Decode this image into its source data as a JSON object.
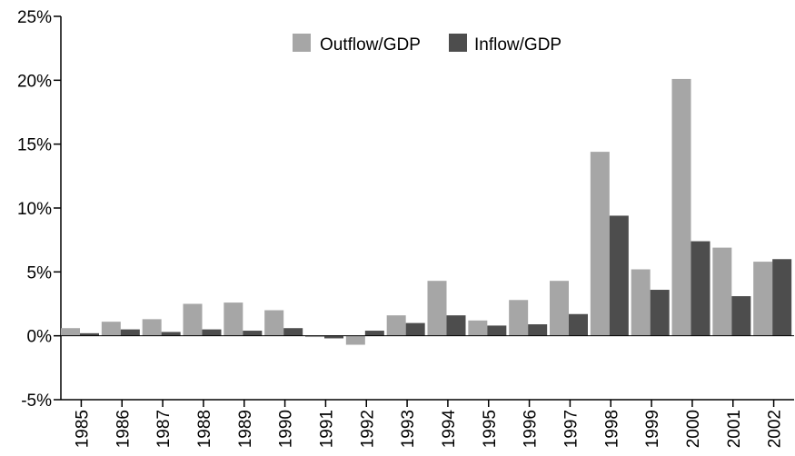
{
  "chart_data": {
    "type": "bar",
    "categories": [
      "1985",
      "1986",
      "1987",
      "1988",
      "1989",
      "1990",
      "1991",
      "1992",
      "1993",
      "1994",
      "1995",
      "1996",
      "1997",
      "1998",
      "1999",
      "2000",
      "2001",
      "2002"
    ],
    "series": [
      {
        "name": "Outflow/GDP",
        "color": "#a6a6a6",
        "values": [
          0.6,
          1.1,
          1.3,
          2.5,
          2.6,
          2.0,
          -0.1,
          -0.7,
          1.6,
          4.3,
          1.2,
          2.8,
          4.3,
          14.4,
          5.2,
          20.1,
          6.9,
          5.8
        ]
      },
      {
        "name": "Inflow/GDP",
        "color": "#4d4d4d",
        "values": [
          0.2,
          0.5,
          0.3,
          0.5,
          0.4,
          0.6,
          -0.2,
          0.4,
          1.0,
          1.6,
          0.8,
          0.9,
          1.7,
          9.4,
          3.6,
          7.4,
          3.1,
          6.0
        ]
      }
    ],
    "yticks": [
      "-5%",
      "0%",
      "5%",
      "10%",
      "15%",
      "20%",
      "25%"
    ],
    "ytick_values": [
      -5,
      0,
      5,
      10,
      15,
      20,
      25
    ],
    "ylim": [
      -5,
      25
    ],
    "legend_position": "top-center",
    "grid": false
  }
}
